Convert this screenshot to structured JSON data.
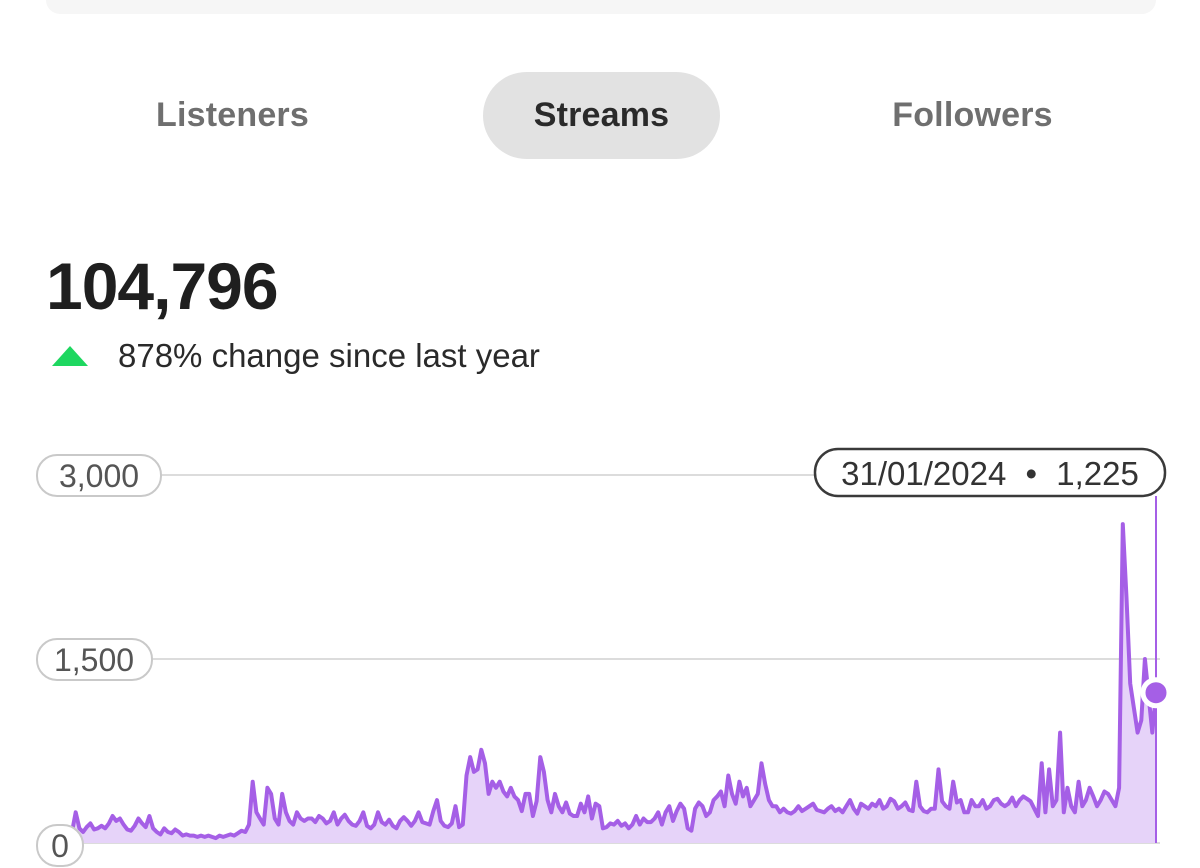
{
  "tabs": [
    {
      "label": "Listeners",
      "active": false
    },
    {
      "label": "Streams",
      "active": true
    },
    {
      "label": "Followers",
      "active": false
    }
  ],
  "summary": {
    "total": "104,796",
    "change_text": "878% change since last year",
    "change_icon": "triangle-up-icon",
    "change_color": "#1ed760"
  },
  "tooltip": {
    "date": "31/01/2024",
    "separator": "•",
    "value": "1,225"
  },
  "colors": {
    "line": "#a55fe6",
    "fill": "#e6d3f9",
    "grid": "#dcdcdc"
  },
  "chart_data": {
    "type": "area",
    "y_ticks": [
      "3,000",
      "1,500",
      "0"
    ],
    "ylim": [
      0,
      3000
    ],
    "x_last": "31/01/2024",
    "series": [
      {
        "values": [
          90,
          250,
          120,
          90,
          130,
          160,
          110,
          120,
          140,
          120,
          160,
          220,
          180,
          200,
          150,
          110,
          100,
          140,
          200,
          160,
          130,
          220,
          120,
          90,
          70,
          120,
          90,
          80,
          110,
          90,
          60,
          70,
          60,
          60,
          50,
          60,
          50,
          60,
          50,
          40,
          60,
          50,
          60,
          70,
          60,
          80,
          100,
          90,
          150,
          500,
          250,
          200,
          150,
          450,
          400,
          200,
          150,
          400,
          250,
          180,
          150,
          250,
          200,
          180,
          200,
          200,
          170,
          220,
          200,
          160,
          180,
          250,
          150,
          200,
          230,
          180,
          150,
          140,
          180,
          250,
          140,
          120,
          150,
          250,
          170,
          150,
          190,
          140,
          120,
          180,
          210,
          180,
          140,
          180,
          250,
          170,
          160,
          150,
          260,
          350,
          180,
          140,
          130,
          160,
          300,
          130,
          150,
          550,
          700,
          580,
          600,
          760,
          650,
          400,
          500,
          450,
          500,
          420,
          380,
          450,
          380,
          350,
          260,
          400,
          400,
          220,
          340,
          700,
          580,
          350,
          250,
          400,
          300,
          250,
          330,
          240,
          220,
          220,
          320,
          250,
          380,
          200,
          320,
          300,
          120,
          130,
          160,
          150,
          180,
          140,
          160,
          120,
          150,
          220,
          150,
          200,
          170,
          170,
          200,
          250,
          150,
          250,
          300,
          180,
          260,
          320,
          280,
          120,
          100,
          280,
          330,
          300,
          220,
          250,
          350,
          380,
          420,
          300,
          550,
          400,
          320,
          500,
          380,
          450,
          300,
          350,
          400,
          650,
          480,
          350,
          300,
          300,
          250,
          280,
          250,
          240,
          260,
          300,
          260,
          280,
          300,
          320,
          270,
          260,
          250,
          280,
          300,
          260,
          280,
          250,
          300,
          350,
          280,
          240,
          320,
          300,
          280,
          320,
          300,
          350,
          280,
          300,
          360,
          340,
          280,
          300,
          330,
          270,
          260,
          500,
          300,
          260,
          250,
          280,
          280,
          600,
          340,
          300,
          280,
          500,
          330,
          350,
          250,
          250,
          350,
          300,
          300,
          350,
          280,
          300,
          350,
          360,
          320,
          300,
          320,
          370,
          300,
          350,
          380,
          360,
          340,
          280,
          220,
          650,
          250,
          600,
          300,
          350,
          900,
          250,
          450,
          300,
          250,
          500,
          300,
          350,
          450,
          380,
          300,
          350,
          420,
          400,
          350,
          300,
          450,
          2600,
          2000,
          1300,
          1100,
          900,
          1000,
          1500,
          1200,
          900,
          1225
        ]
      }
    ]
  }
}
